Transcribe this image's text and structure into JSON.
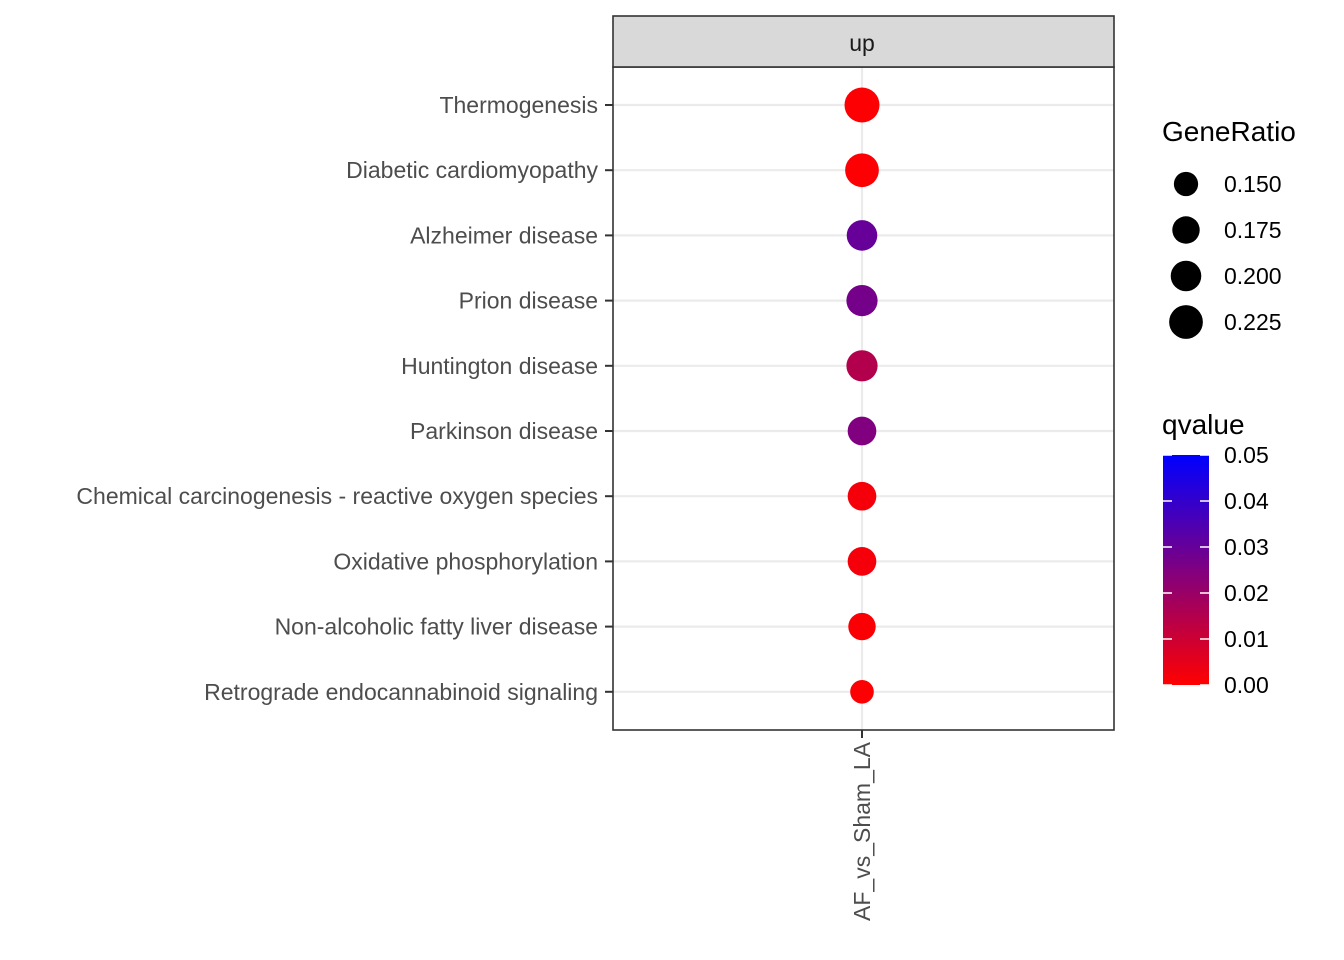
{
  "chart_data": {
    "type": "scatter",
    "facet_label": "up",
    "x_categories": [
      "AF_vs_Sham_LA"
    ],
    "y_categories": [
      "Thermogenesis",
      "Diabetic cardiomyopathy",
      "Alzheimer disease",
      "Prion disease",
      "Huntington disease",
      "Parkinson disease",
      "Chemical carcinogenesis - reactive oxygen species",
      "Oxidative phosphorylation",
      "Non-alcoholic fatty liver disease",
      "Retrograde endocannabinoid signaling"
    ],
    "points": [
      {
        "x": "AF_vs_Sham_LA",
        "y": "Thermogenesis",
        "gene_ratio": 0.235,
        "qvalue": 0.0005
      },
      {
        "x": "AF_vs_Sham_LA",
        "y": "Diabetic cardiomyopathy",
        "gene_ratio": 0.225,
        "qvalue": 0.0005
      },
      {
        "x": "AF_vs_Sham_LA",
        "y": "Alzheimer disease",
        "gene_ratio": 0.2,
        "qvalue": 0.03
      },
      {
        "x": "AF_vs_Sham_LA",
        "y": "Prion disease",
        "gene_ratio": 0.205,
        "qvalue": 0.027
      },
      {
        "x": "AF_vs_Sham_LA",
        "y": "Huntington disease",
        "gene_ratio": 0.205,
        "qvalue": 0.015
      },
      {
        "x": "AF_vs_Sham_LA",
        "y": "Parkinson disease",
        "gene_ratio": 0.185,
        "qvalue": 0.025
      },
      {
        "x": "AF_vs_Sham_LA",
        "y": "Chemical carcinogenesis - reactive oxygen species",
        "gene_ratio": 0.185,
        "qvalue": 0.002
      },
      {
        "x": "AF_vs_Sham_LA",
        "y": "Oxidative phosphorylation",
        "gene_ratio": 0.185,
        "qvalue": 0.002
      },
      {
        "x": "AF_vs_Sham_LA",
        "y": "Non-alcoholic fatty liver disease",
        "gene_ratio": 0.175,
        "qvalue": 0.001
      },
      {
        "x": "AF_vs_Sham_LA",
        "y": "Retrograde endocannabinoid signaling",
        "gene_ratio": 0.145,
        "qvalue": 0.0005
      }
    ],
    "size_legend": {
      "title": "GeneRatio",
      "values": [
        0.15,
        0.175,
        0.2,
        0.225
      ],
      "labels": [
        "0.150",
        "0.175",
        "0.200",
        "0.225"
      ]
    },
    "color_legend": {
      "title": "qvalue",
      "range": [
        0,
        0.05
      ],
      "ticks": [
        0.05,
        0.04,
        0.03,
        0.02,
        0.01,
        0.0
      ],
      "tick_labels": [
        "0.05",
        "0.04",
        "0.03",
        "0.02",
        "0.01",
        "0.00"
      ],
      "low_color": "#ff0000",
      "high_color": "#0000ff"
    },
    "grid": true,
    "legend_placement": "right"
  }
}
